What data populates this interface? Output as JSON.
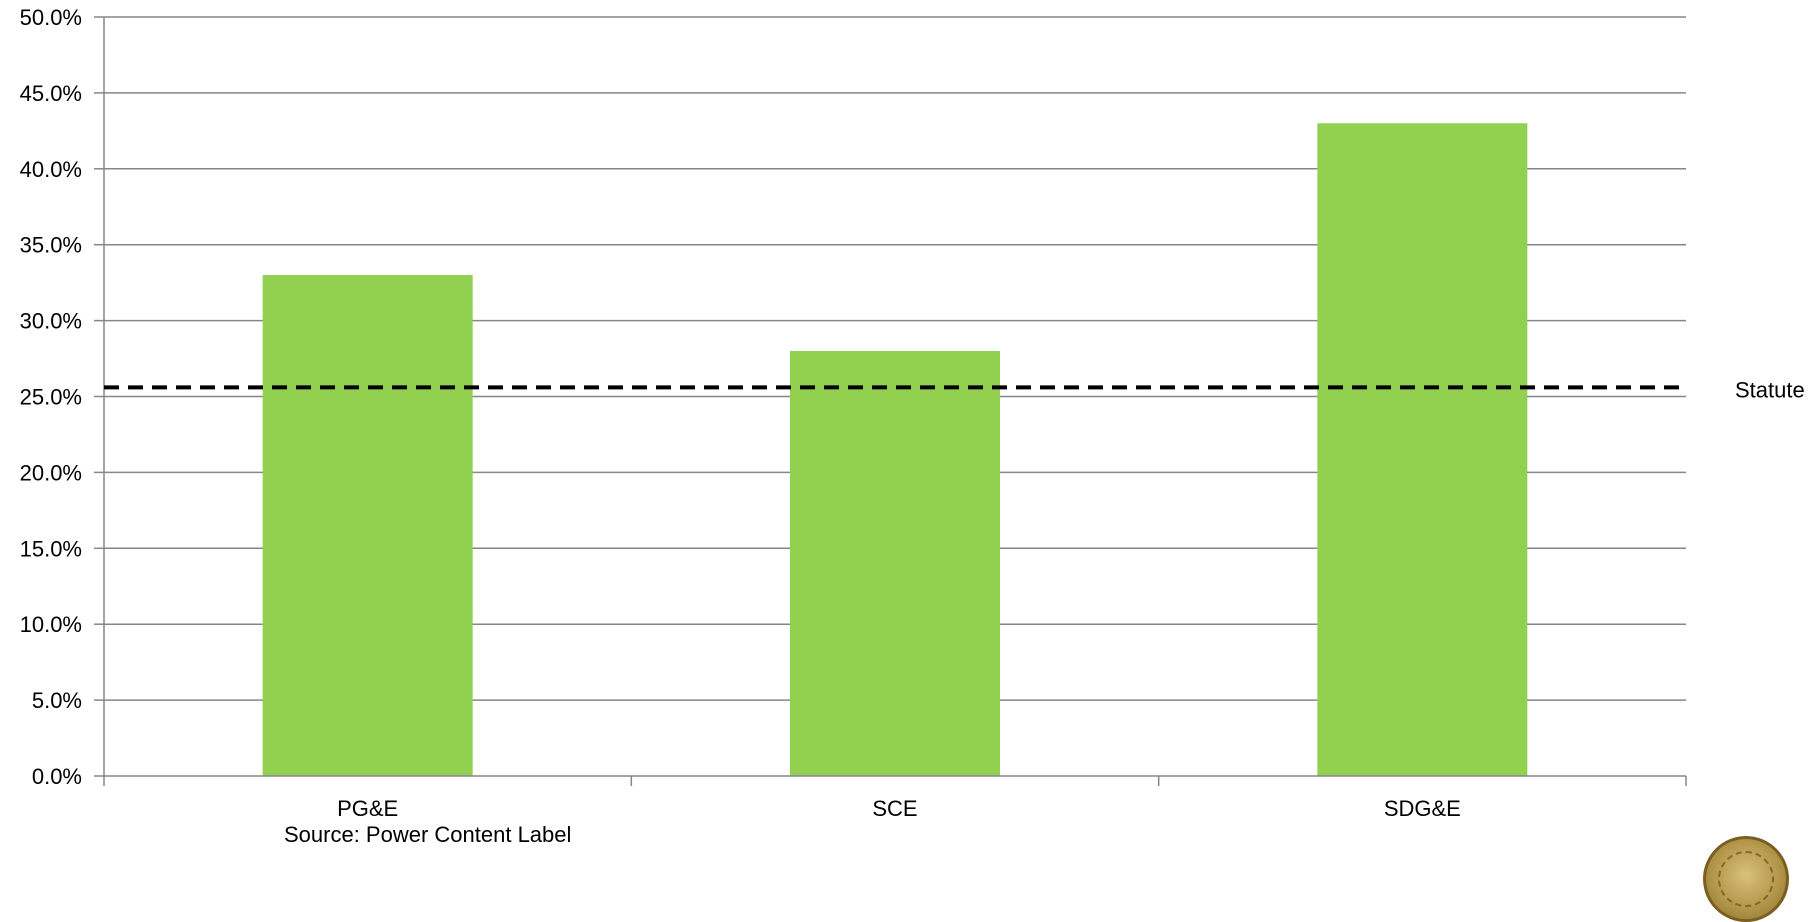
{
  "chart_data": {
    "type": "bar",
    "categories": [
      "PG&E",
      "SCE",
      "SDG&E"
    ],
    "values": [
      33.0,
      28.0,
      43.0
    ],
    "ylim": [
      0,
      50
    ],
    "yticks": [
      "0.0%",
      "5.0%",
      "10.0%",
      "15.0%",
      "20.0%",
      "25.0%",
      "30.0%",
      "35.0%",
      "40.0%",
      "45.0%",
      "50.0%"
    ],
    "grid": true,
    "reference_line": {
      "label": "Statute",
      "value": 25.6,
      "style": "dashed"
    },
    "colors": {
      "bar": "#92d050",
      "grid": "#868686",
      "reference": "#000000"
    },
    "title": "",
    "xlabel": "",
    "ylabel": ""
  },
  "source_note": "Source: Power Content Label",
  "logo": {
    "icon": "seal-icon"
  }
}
